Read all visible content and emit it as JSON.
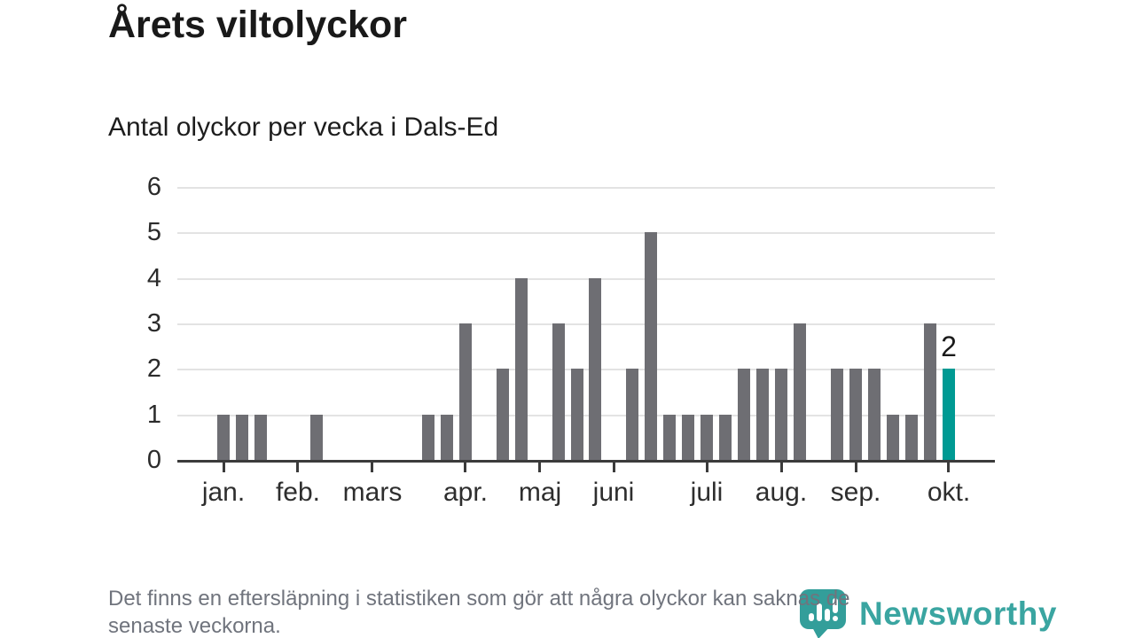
{
  "header": {
    "title": "Årets viltolyckor",
    "subtitle": "Antal olyckor per vecka i Dals-Ed"
  },
  "chart_data": {
    "type": "bar",
    "title": "Årets viltolyckor",
    "subtitle": "Antal olyckor per vecka i Dals-Ed",
    "x_unit": "week",
    "values": [
      1,
      1,
      1,
      0,
      0,
      1,
      0,
      0,
      0,
      0,
      0,
      1,
      1,
      3,
      0,
      2,
      4,
      0,
      3,
      2,
      4,
      0,
      2,
      5,
      1,
      1,
      1,
      1,
      2,
      2,
      2,
      3,
      0,
      2,
      2,
      2,
      1,
      1,
      3,
      2
    ],
    "months": [
      {
        "label": "jan.",
        "week_index": 0
      },
      {
        "label": "feb.",
        "week_index": 4
      },
      {
        "label": "mars",
        "week_index": 8
      },
      {
        "label": "apr.",
        "week_index": 13
      },
      {
        "label": "maj",
        "week_index": 17
      },
      {
        "label": "juni",
        "week_index": 21
      },
      {
        "label": "juli",
        "week_index": 26
      },
      {
        "label": "aug.",
        "week_index": 30
      },
      {
        "label": "sep.",
        "week_index": 34
      },
      {
        "label": "okt.",
        "week_index": 39
      }
    ],
    "y_ticks": [
      0,
      1,
      2,
      3,
      4,
      5,
      6
    ],
    "ylim": [
      0,
      6
    ],
    "grid": true,
    "highlight_index": 39,
    "highlight_label": "2",
    "colors": {
      "bar": "#6e6e73",
      "highlight": "#009a93",
      "gridline": "#e3e3e3",
      "axis": "#3b3b3b"
    }
  },
  "footer": {
    "lines": [
      "Det finns en eftersläpning i statistiken som gör att några olyckor kan saknas de",
      "senaste veckorna."
    ],
    "logo_text": "Newsworthy",
    "logo_color": "#3aa5a1"
  }
}
